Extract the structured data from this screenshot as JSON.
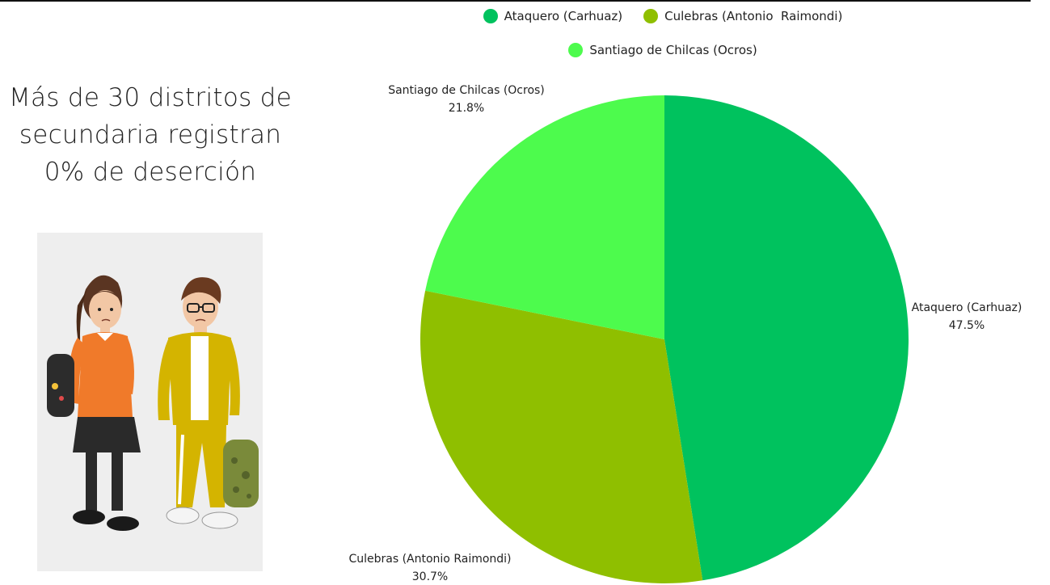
{
  "headline": {
    "line1": "Más de 30 distritos de",
    "line2": "secundaria registran",
    "line3": "0% de deserción"
  },
  "illustration": {
    "icon": "students-walking-illustration"
  },
  "legend": {
    "items": [
      {
        "label": "Ataquero (Carhuaz)",
        "color": "#00c25e"
      },
      {
        "label": "Culebras (Antonio  Raimondi)",
        "color": "#8fbf00"
      },
      {
        "label": "Santiago de Chilcas (Ocros)",
        "color": "#4dfb4d"
      }
    ]
  },
  "chart_data": {
    "type": "pie",
    "categories": [
      "Ataquero (Carhuaz)",
      "Culebras (Antonio  Raimondi)",
      "Santiago de Chilcas (Ocros)"
    ],
    "values": [
      47.5,
      30.7,
      21.8
    ],
    "value_labels": [
      "47.5%",
      "30.7%",
      "21.8%"
    ],
    "colors": [
      "#00c25e",
      "#8fbf00",
      "#4dfb4d"
    ],
    "start": "12 o'clock",
    "direction": "clockwise",
    "legend_position": "top"
  }
}
